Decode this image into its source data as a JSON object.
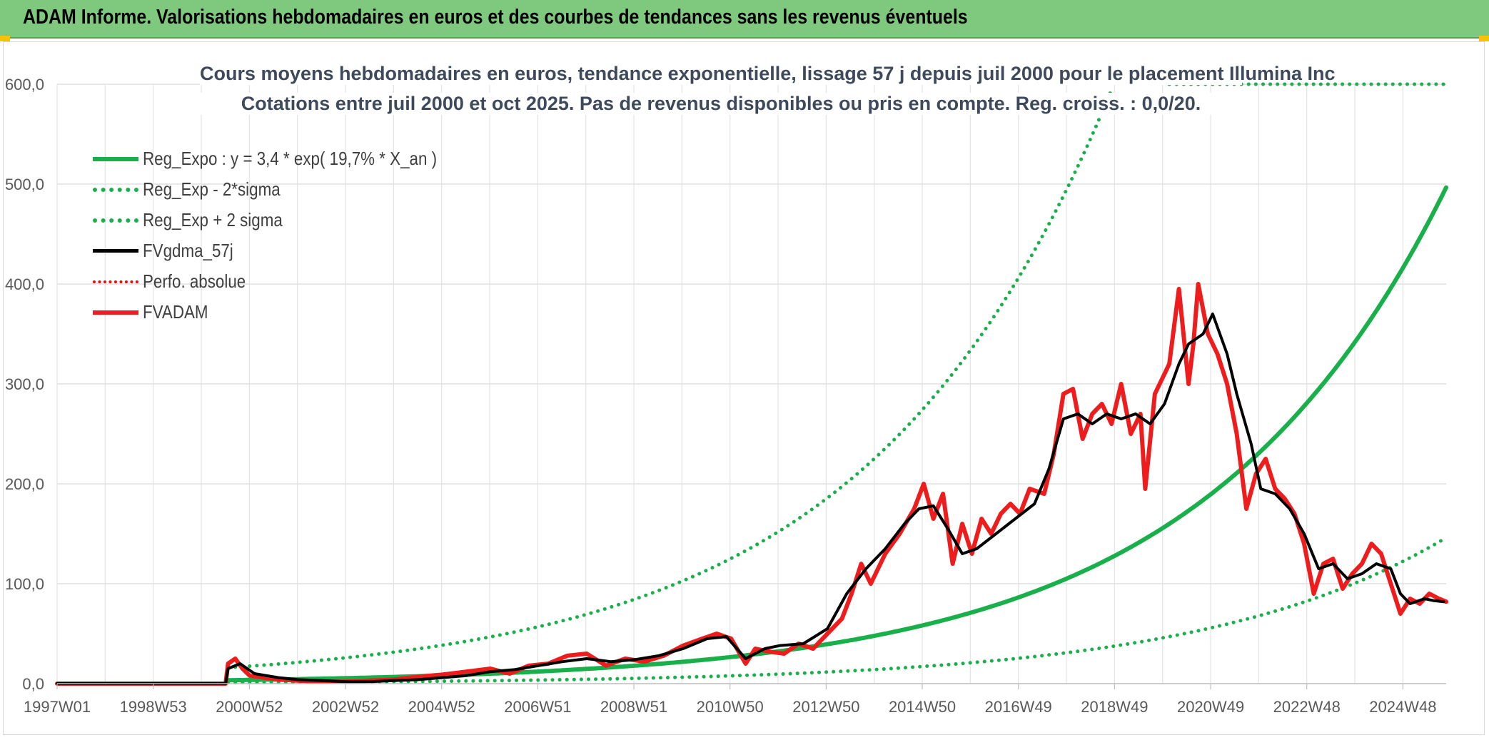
{
  "header": {
    "title": "ADAM Informe. Valorisations hebdomadaires en euros et des courbes de tendances sans les revenus éventuels"
  },
  "chart_data": {
    "type": "line",
    "title": "Cours moyens hebdomadaires en euros, tendance exponentielle, lissage 57 j depuis juil 2000 pour le placement Illumina Inc",
    "subtitle": "Cotations entre juil 2000 et oct 2025. Pas de revenus disponibles ou pris en compte. Reg. croiss. : 0,0/20.",
    "xlabel": "",
    "ylabel": "",
    "x_tick_labels": [
      "1997W01",
      "1998W53",
      "2000W52",
      "2002W52",
      "2004W52",
      "2006W51",
      "2008W51",
      "2010W50",
      "2012W50",
      "2014W50",
      "2016W49",
      "2018W49",
      "2020W49",
      "2022W48",
      "2024W48"
    ],
    "y_tick_labels": [
      "0,0",
      "100,0",
      "200,0",
      "300,0",
      "400,0",
      "500,0",
      "600,0"
    ],
    "xlim": [
      1997.0,
      2025.85
    ],
    "ylim": [
      0,
      600
    ],
    "grid": true,
    "legend_position": "top-left",
    "series": [
      {
        "name": "Reg_Expo : y = 3,4 * exp( 19,7% *  X_an )",
        "color": "#19b04b",
        "style": "solid",
        "kind": "exp",
        "a": 3.4,
        "r": 0.197,
        "start": 2000.55,
        "end": 2025.85
      },
      {
        "name": "Reg_Exp - 2*sigma",
        "color": "#19b04b",
        "style": "dotted",
        "kind": "exp",
        "a": 1.0,
        "r": 0.197,
        "start": 2000.55,
        "end": 2025.85
      },
      {
        "name": "Reg_Exp + 2 sigma",
        "color": "#19b04b",
        "style": "dotted",
        "kind": "exp",
        "a": 16.0,
        "r": 0.197,
        "start": 2000.55,
        "end": 2025.85,
        "cap": 600
      },
      {
        "name": "FVgdma_57j",
        "color": "#000000",
        "style": "solid",
        "kind": "points",
        "x": [
          1997.0,
          2000.5,
          2000.55,
          2000.8,
          2001.1,
          2001.6,
          2002.0,
          2002.5,
          2003.0,
          2003.5,
          2004.0,
          2004.5,
          2005.0,
          2005.5,
          2006.0,
          2006.5,
          2007.0,
          2007.5,
          2008.0,
          2008.5,
          2009.0,
          2009.5,
          2010.0,
          2010.5,
          2010.9,
          2011.3,
          2011.7,
          2012.0,
          2012.5,
          2013.0,
          2013.4,
          2013.8,
          2014.2,
          2014.6,
          2014.9,
          2015.2,
          2015.5,
          2015.8,
          2016.1,
          2016.5,
          2016.9,
          2017.3,
          2017.6,
          2017.9,
          2018.2,
          2018.5,
          2018.8,
          2019.1,
          2019.4,
          2019.7,
          2020.0,
          2020.3,
          2020.5,
          2020.8,
          2021.0,
          2021.3,
          2021.5,
          2021.8,
          2022.0,
          2022.3,
          2022.6,
          2022.9,
          2023.2,
          2023.5,
          2023.8,
          2024.1,
          2024.4,
          2024.7,
          2024.9,
          2025.1,
          2025.4,
          2025.6,
          2025.8
        ],
        "y": [
          0,
          0,
          15,
          20,
          10,
          6,
          4,
          3,
          2,
          2,
          3,
          4,
          6,
          8,
          12,
          14,
          18,
          22,
          25,
          22,
          24,
          28,
          35,
          45,
          47,
          25,
          35,
          38,
          40,
          55,
          90,
          115,
          135,
          160,
          175,
          178,
          155,
          130,
          135,
          150,
          165,
          180,
          215,
          265,
          270,
          260,
          270,
          265,
          270,
          260,
          280,
          320,
          340,
          350,
          370,
          330,
          290,
          240,
          195,
          190,
          175,
          150,
          115,
          120,
          105,
          110,
          120,
          115,
          90,
          80,
          85,
          83,
          82
        ]
      },
      {
        "name": "Perfo. absolue",
        "color": "#ff0000",
        "style": "dotted",
        "kind": "none"
      },
      {
        "name": "FVADAM",
        "color": "#ee1c1c",
        "style": "solid",
        "kind": "points",
        "x": [
          1997.0,
          2000.5,
          2000.55,
          2000.7,
          2000.85,
          2001.0,
          2001.3,
          2001.6,
          2002.0,
          2002.5,
          2003.0,
          2003.5,
          2004.0,
          2004.5,
          2005.0,
          2005.5,
          2006.0,
          2006.4,
          2006.8,
          2007.2,
          2007.6,
          2008.0,
          2008.4,
          2008.8,
          2009.2,
          2009.6,
          2010.0,
          2010.4,
          2010.7,
          2011.0,
          2011.3,
          2011.5,
          2011.8,
          2012.1,
          2012.4,
          2012.7,
          2013.0,
          2013.3,
          2013.5,
          2013.7,
          2013.9,
          2014.2,
          2014.5,
          2014.8,
          2015.0,
          2015.2,
          2015.4,
          2015.6,
          2015.8,
          2016.0,
          2016.2,
          2016.4,
          2016.6,
          2016.8,
          2017.0,
          2017.2,
          2017.5,
          2017.7,
          2017.9,
          2018.1,
          2018.3,
          2018.5,
          2018.7,
          2018.9,
          2019.1,
          2019.3,
          2019.5,
          2019.6,
          2019.8,
          2020.0,
          2020.1,
          2020.3,
          2020.5,
          2020.6,
          2020.7,
          2020.9,
          2021.1,
          2021.3,
          2021.5,
          2021.7,
          2021.9,
          2022.1,
          2022.3,
          2022.5,
          2022.7,
          2022.9,
          2023.1,
          2023.3,
          2023.5,
          2023.7,
          2023.9,
          2024.1,
          2024.3,
          2024.5,
          2024.7,
          2024.9,
          2025.1,
          2025.3,
          2025.5,
          2025.7,
          2025.85
        ],
        "y": [
          0,
          0,
          20,
          25,
          15,
          8,
          6,
          4,
          3,
          2,
          2,
          3,
          4,
          7,
          9,
          12,
          15,
          10,
          18,
          20,
          28,
          30,
          18,
          25,
          22,
          28,
          38,
          45,
          50,
          45,
          20,
          35,
          32,
          30,
          40,
          35,
          50,
          65,
          90,
          120,
          100,
          130,
          150,
          175,
          200,
          165,
          190,
          120,
          160,
          130,
          165,
          150,
          170,
          180,
          170,
          195,
          190,
          230,
          290,
          295,
          245,
          270,
          280,
          260,
          300,
          250,
          270,
          195,
          290,
          310,
          320,
          395,
          300,
          340,
          400,
          350,
          330,
          300,
          250,
          175,
          210,
          225,
          195,
          185,
          170,
          140,
          90,
          120,
          125,
          95,
          110,
          120,
          140,
          130,
          100,
          70,
          85,
          80,
          90,
          85,
          82
        ]
      }
    ]
  }
}
